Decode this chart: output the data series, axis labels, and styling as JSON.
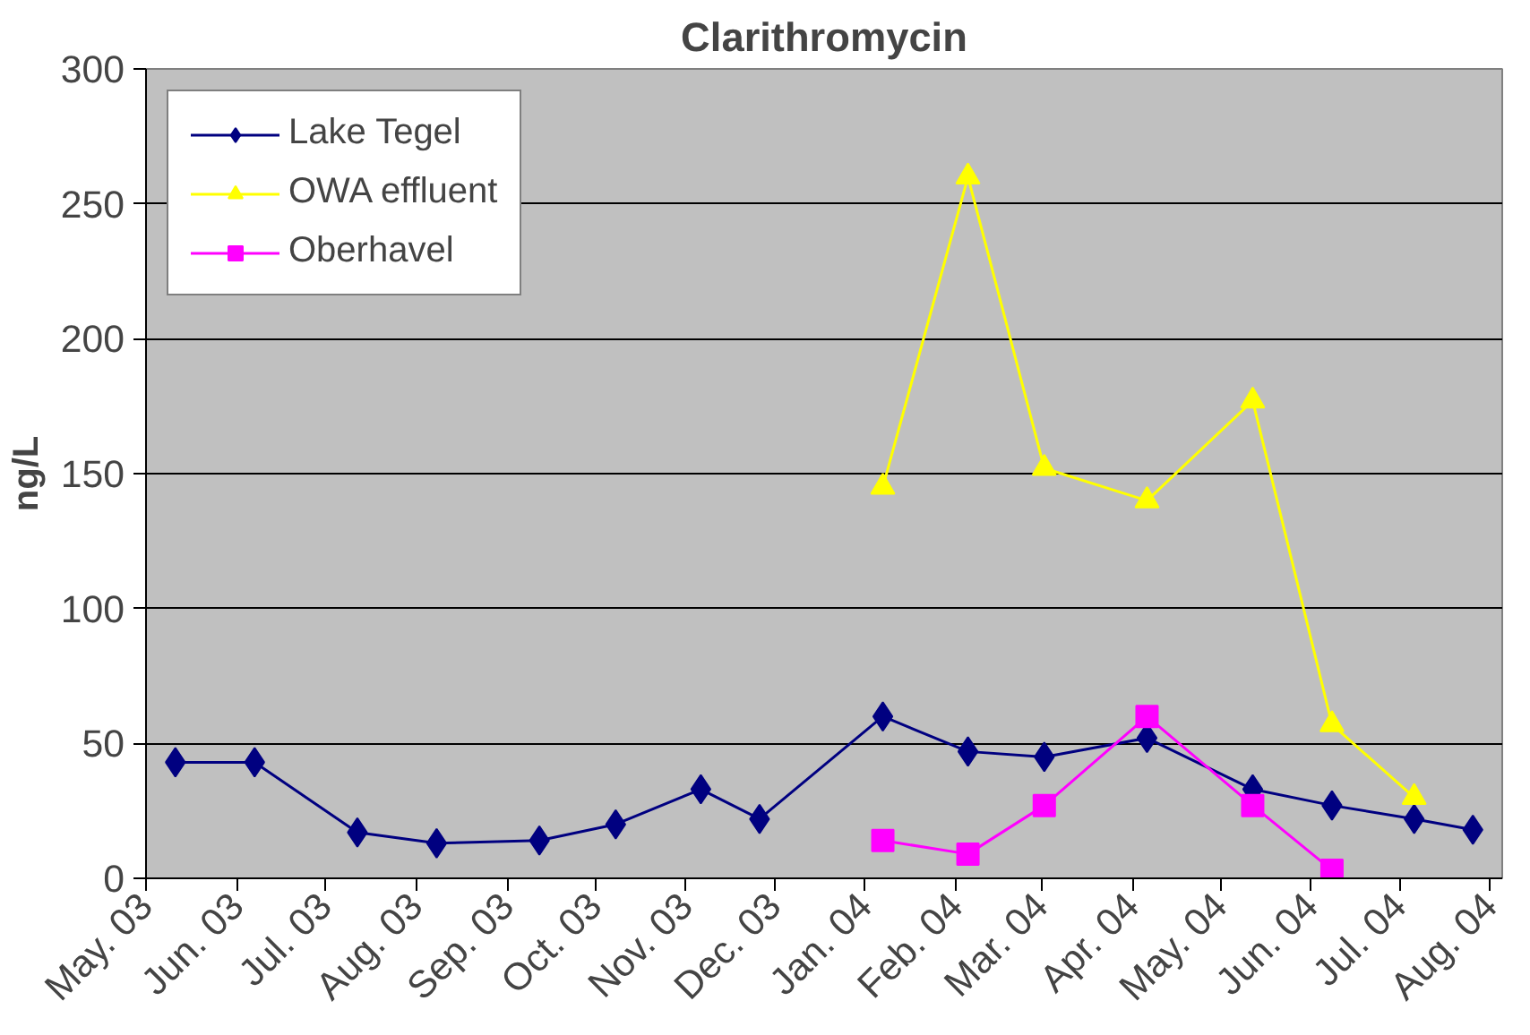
{
  "chart_data": {
    "type": "line",
    "title": "Clarithromycin",
    "ylabel": "ng/L",
    "xlim": [
      "2003-05-01",
      "2004-08-05"
    ],
    "ylim": [
      0,
      300
    ],
    "yticks": [
      0,
      50,
      100,
      150,
      200,
      250,
      300
    ],
    "xticks": [
      {
        "value": "2003-05-01",
        "label": "May. 03"
      },
      {
        "value": "2003-06-01",
        "label": "Jun. 03"
      },
      {
        "value": "2003-07-01",
        "label": "Jul. 03"
      },
      {
        "value": "2003-08-01",
        "label": "Aug. 03"
      },
      {
        "value": "2003-09-01",
        "label": "Sep. 03"
      },
      {
        "value": "2003-10-01",
        "label": "Oct. 03"
      },
      {
        "value": "2003-11-01",
        "label": "Nov. 03"
      },
      {
        "value": "2003-12-01",
        "label": "Dec. 03"
      },
      {
        "value": "2004-01-01",
        "label": "Jan. 04"
      },
      {
        "value": "2004-02-01",
        "label": "Feb. 04"
      },
      {
        "value": "2004-03-01",
        "label": "Mar. 04"
      },
      {
        "value": "2004-04-01",
        "label": "Apr. 04"
      },
      {
        "value": "2004-05-01",
        "label": "May. 04"
      },
      {
        "value": "2004-06-01",
        "label": "Jun. 04"
      },
      {
        "value": "2004-07-01",
        "label": "Jul. 04"
      },
      {
        "value": "2004-08-01",
        "label": "Aug. 04"
      }
    ],
    "grid": "y",
    "legend": "top left",
    "series": [
      {
        "name": "Lake Tegel",
        "color": "#000080",
        "marker": "diamond",
        "x": [
          "2003-05-11",
          "2003-06-07",
          "2003-07-12",
          "2003-08-08",
          "2003-09-12",
          "2003-10-08",
          "2003-11-06",
          "2003-11-26",
          "2004-01-07",
          "2004-02-05",
          "2004-03-02",
          "2004-04-06",
          "2004-05-12",
          "2004-06-08",
          "2004-07-06",
          "2004-07-26"
        ],
        "values": [
          43,
          43,
          17,
          13,
          14,
          20,
          33,
          22,
          60,
          47,
          45,
          52,
          33,
          27,
          22,
          18
        ]
      },
      {
        "name": "OWA effluent",
        "color": "#ffff00",
        "marker": "triangle",
        "x": [
          "2004-01-07",
          "2004-02-05",
          "2004-03-02",
          "2004-04-06",
          "2004-05-12",
          "2004-06-08",
          "2004-07-06"
        ],
        "values": [
          145,
          260,
          152,
          140,
          177,
          57,
          30
        ]
      },
      {
        "name": "Oberhavel",
        "color": "#ff00ff",
        "marker": "square",
        "x": [
          "2004-01-07",
          "2004-02-05",
          "2004-03-02",
          "2004-04-06",
          "2004-05-12",
          "2004-06-08"
        ],
        "values": [
          14,
          9,
          27,
          60,
          27,
          3
        ]
      }
    ]
  }
}
